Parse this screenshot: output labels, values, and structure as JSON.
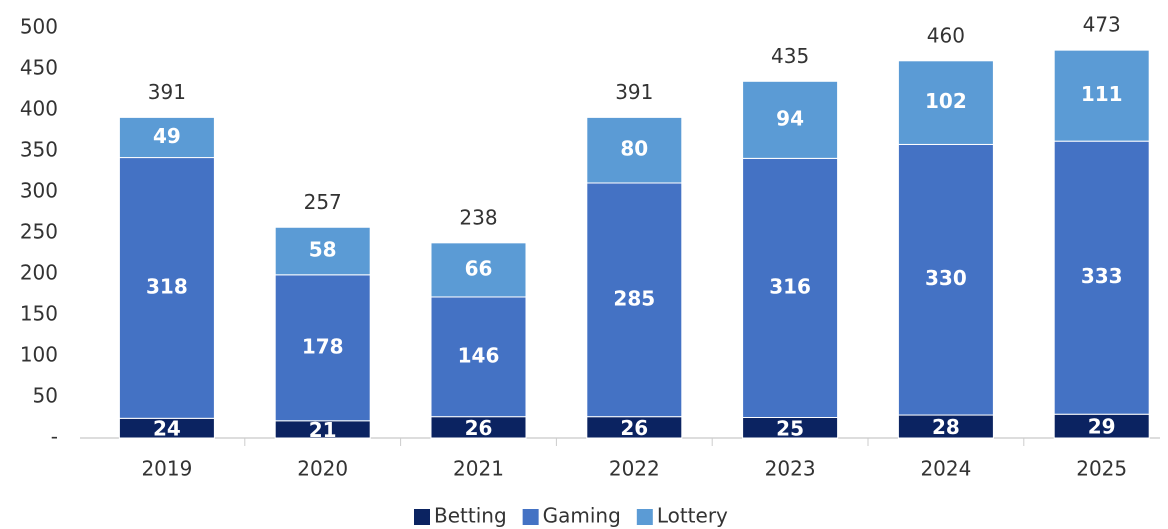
{
  "chart_data": {
    "type": "stacked_bar",
    "categories": [
      "2019",
      "2020",
      "2021",
      "2022",
      "2023",
      "2024",
      "2025"
    ],
    "series": [
      {
        "name": "Betting",
        "color": "#0b2361",
        "values": [
          24,
          21,
          26,
          26,
          25,
          28,
          29
        ]
      },
      {
        "name": "Gaming",
        "color": "#4472c4",
        "values": [
          318,
          178,
          146,
          285,
          316,
          330,
          333
        ]
      },
      {
        "name": "Lottery",
        "color": "#5b9bd5",
        "values": [
          49,
          58,
          66,
          80,
          94,
          102,
          111
        ]
      }
    ],
    "totals": [
      391,
      257,
      238,
      391,
      435,
      460,
      473
    ],
    "ylim": [
      0,
      500
    ],
    "yticks": [
      {
        "value": 0,
        "label": "-"
      },
      50,
      100,
      150,
      200,
      250,
      300,
      350,
      400,
      450,
      500
    ],
    "grid": false,
    "legend": "bottom"
  }
}
